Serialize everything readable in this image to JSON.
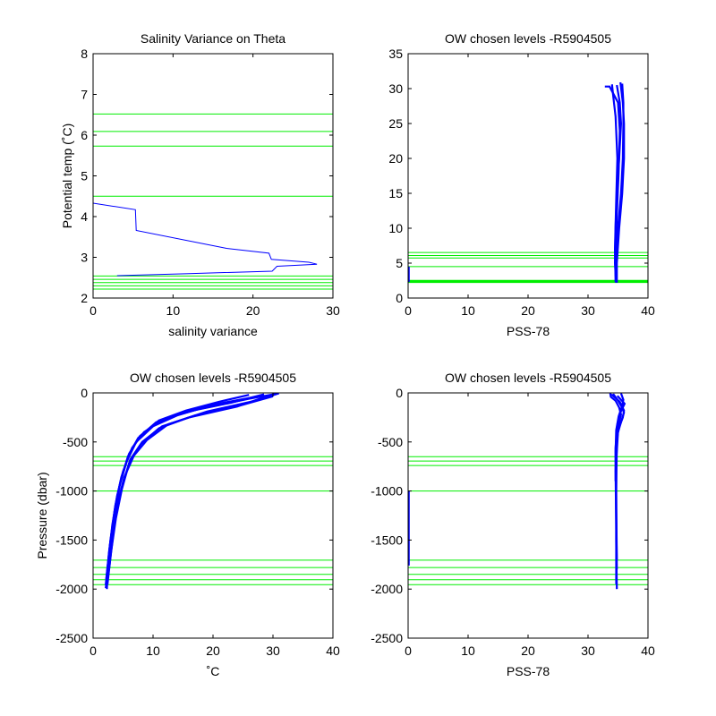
{
  "colors": {
    "data_line": "#0000ff",
    "level_line": "#00ee00",
    "axes": "#000000",
    "background": "#ffffff"
  },
  "chart_data": [
    {
      "id": "sal-var",
      "type": "line",
      "title": "Salinity Variance on Theta",
      "xlabel": "salinity variance",
      "ylabel": "Potential temp (˚C)",
      "xlim": [
        0,
        30
      ],
      "ylim": [
        2,
        8
      ],
      "xticks": [
        0,
        10,
        20,
        30
      ],
      "yticks": [
        2,
        3,
        4,
        5,
        6,
        7,
        8
      ],
      "grid": false,
      "series": [
        {
          "points": [
            [
              0,
              4.33
            ],
            [
              5.3,
              4.17
            ],
            [
              5.4,
              3.66
            ],
            [
              16.7,
              3.22
            ],
            [
              22,
              3.1
            ],
            [
              22.3,
              2.95
            ],
            [
              27,
              2.88
            ],
            [
              28,
              2.83
            ],
            [
              23,
              2.78
            ],
            [
              22.4,
              2.66
            ],
            [
              12,
              2.6
            ],
            [
              3,
              2.55
            ]
          ]
        }
      ],
      "levels": {
        "axis": "y",
        "values": [
          6.52,
          6.09,
          5.73,
          4.5,
          2.54,
          2.46,
          2.38,
          2.3,
          2.22
        ]
      }
    },
    {
      "id": "theta-sal",
      "type": "line",
      "title": "OW chosen levels -R5904505",
      "xlabel": "PSS-78",
      "ylabel": "",
      "xlim": [
        0,
        40
      ],
      "ylim": [
        0,
        35
      ],
      "xticks": [
        0,
        10,
        20,
        30,
        40
      ],
      "yticks": [
        0,
        5,
        10,
        15,
        20,
        25,
        30,
        35
      ],
      "grid": false,
      "series": [
        {
          "points": [
            [
              34.7,
              2.2
            ],
            [
              34.5,
              5
            ],
            [
              34.6,
              10
            ],
            [
              34.8,
              15
            ],
            [
              35.2,
              20
            ],
            [
              35.5,
              25
            ],
            [
              35.3,
              28
            ],
            [
              34.8,
              30.5
            ]
          ]
        },
        {
          "points": [
            [
              34.7,
              2.2
            ],
            [
              34.7,
              5
            ],
            [
              35.0,
              10
            ],
            [
              35.5,
              15
            ],
            [
              35.8,
              20
            ],
            [
              35.9,
              25
            ],
            [
              35.9,
              28
            ],
            [
              35.7,
              30.7
            ]
          ]
        },
        {
          "points": [
            [
              34.8,
              2.2
            ],
            [
              34.8,
              5
            ],
            [
              35.2,
              10
            ],
            [
              35.7,
              15
            ],
            [
              36.0,
              20
            ],
            [
              36.0,
              25
            ],
            [
              35.8,
              28
            ],
            [
              35.4,
              30.9
            ]
          ]
        },
        {
          "points": [
            [
              34.7,
              2.3
            ],
            [
              34.6,
              6
            ],
            [
              34.8,
              12
            ],
            [
              35.1,
              18
            ],
            [
              35.3,
              24
            ],
            [
              35.0,
              28
            ],
            [
              33.6,
              30.3
            ],
            [
              32.8,
              30.3
            ]
          ]
        },
        {
          "points": [
            [
              34.6,
              2.3
            ],
            [
              34.5,
              7
            ],
            [
              34.7,
              14
            ],
            [
              34.9,
              20
            ],
            [
              34.6,
              26
            ],
            [
              34.2,
              29
            ],
            [
              34.0,
              30.6
            ]
          ]
        },
        {
          "points": [
            [
              0.1,
              2.3
            ],
            [
              0.1,
              4.5
            ]
          ]
        }
      ],
      "levels": {
        "axis": "y",
        "values": [
          6.52,
          6.09,
          5.73,
          4.5,
          2.54,
          2.46,
          2.38,
          2.3,
          2.22
        ]
      }
    },
    {
      "id": "pres-temp",
      "type": "line",
      "title": "OW chosen levels -R5904505",
      "xlabel": "˚C",
      "ylabel": "Pressure (dbar)",
      "xlim": [
        0,
        40
      ],
      "ylim": [
        -2500,
        0
      ],
      "xticks": [
        0,
        10,
        20,
        30,
        40
      ],
      "yticks": [
        0,
        -500,
        -1000,
        -1500,
        -2000,
        -2500
      ],
      "grid": false,
      "series": [
        {
          "points": [
            [
              30.5,
              -10
            ],
            [
              26,
              -60
            ],
            [
              18,
              -160
            ],
            [
              12,
              -260
            ],
            [
              8.5,
              -400
            ],
            [
              6.5,
              -560
            ],
            [
              5,
              -800
            ],
            [
              4,
              -1050
            ],
            [
              3.2,
              -1350
            ],
            [
              2.6,
              -1700
            ],
            [
              2.3,
              -2000
            ]
          ]
        },
        {
          "points": [
            [
              28.5,
              -15
            ],
            [
              23,
              -100
            ],
            [
              15,
              -200
            ],
            [
              10.5,
              -300
            ],
            [
              7.5,
              -460
            ],
            [
              5.8,
              -650
            ],
            [
              4.6,
              -900
            ],
            [
              3.6,
              -1200
            ],
            [
              2.8,
              -1550
            ],
            [
              2.2,
              -1900
            ]
          ]
        },
        {
          "points": [
            [
              29.5,
              -25
            ],
            [
              24,
              -140
            ],
            [
              16,
              -250
            ],
            [
              11,
              -360
            ],
            [
              8,
              -520
            ],
            [
              6,
              -720
            ],
            [
              4.8,
              -980
            ],
            [
              3.8,
              -1280
            ],
            [
              3.0,
              -1620
            ],
            [
              2.4,
              -1950
            ]
          ]
        },
        {
          "points": [
            [
              31,
              -5
            ],
            [
              27,
              -80
            ],
            [
              19,
              -190
            ],
            [
              12.5,
              -320
            ],
            [
              9,
              -480
            ],
            [
              6.8,
              -640
            ],
            [
              5.2,
              -860
            ],
            [
              4.2,
              -1100
            ],
            [
              3.4,
              -1420
            ],
            [
              2.7,
              -1780
            ],
            [
              2.1,
              -1990
            ]
          ]
        },
        {
          "points": [
            [
              27,
              -40
            ],
            [
              20,
              -120
            ],
            [
              14,
              -230
            ],
            [
              10,
              -340
            ],
            [
              7.2,
              -500
            ],
            [
              5.6,
              -700
            ],
            [
              4.4,
              -950
            ],
            [
              3.5,
              -1250
            ],
            [
              2.7,
              -1600
            ],
            [
              2.1,
              -1960
            ]
          ]
        },
        {
          "points": [
            [
              30,
              -35
            ],
            [
              25,
              -120
            ],
            [
              17,
              -230
            ],
            [
              11.5,
              -340
            ],
            [
              8.2,
              -500
            ],
            [
              6.2,
              -680
            ],
            [
              5,
              -920
            ],
            [
              3.9,
              -1200
            ],
            [
              3.1,
              -1500
            ],
            [
              2.5,
              -1850
            ]
          ]
        },
        {
          "points": [
            [
              26,
              -20
            ],
            [
              21,
              -90
            ],
            [
              15.5,
              -180
            ],
            [
              11,
              -280
            ],
            [
              7.8,
              -440
            ],
            [
              6,
              -620
            ],
            [
              4.7,
              -860
            ],
            [
              3.7,
              -1150
            ],
            [
              2.9,
              -1500
            ],
            [
              2.3,
              -1880
            ]
          ]
        }
      ],
      "levels": {
        "axis": "y",
        "values": [
          -650,
          -695,
          -740,
          -1000,
          -1705,
          -1780,
          -1850,
          -1905,
          -1955
        ]
      }
    },
    {
      "id": "pres-sal",
      "type": "line",
      "title": "OW chosen levels -R5904505",
      "xlabel": "PSS-78",
      "ylabel": "",
      "xlim": [
        0,
        40
      ],
      "ylim": [
        -2500,
        0
      ],
      "xticks": [
        0,
        10,
        20,
        30,
        40
      ],
      "yticks": [
        0,
        -500,
        -1000,
        -1500,
        -2000,
        -2500
      ],
      "grid": false,
      "series": [
        {
          "points": [
            [
              33.7,
              -5
            ],
            [
              33.8,
              -40
            ],
            [
              34.6,
              -80
            ],
            [
              35.2,
              -150
            ],
            [
              35.5,
              -220
            ],
            [
              35.2,
              -300
            ],
            [
              34.8,
              -500
            ],
            [
              34.7,
              -1000
            ],
            [
              34.7,
              -1500
            ],
            [
              34.8,
              -2000
            ]
          ]
        },
        {
          "points": [
            [
              34.2,
              -10
            ],
            [
              34.8,
              -60
            ],
            [
              35.6,
              -140
            ],
            [
              36.0,
              -200
            ],
            [
              35.6,
              -280
            ],
            [
              35.0,
              -400
            ],
            [
              34.7,
              -700
            ],
            [
              34.7,
              -1200
            ],
            [
              34.8,
              -1800
            ]
          ]
        },
        {
          "points": [
            [
              33.9,
              -15
            ],
            [
              35.3,
              -90
            ],
            [
              36.0,
              -180
            ],
            [
              35.8,
              -250
            ],
            [
              35.3,
              -330
            ],
            [
              34.8,
              -450
            ],
            [
              34.6,
              -800
            ],
            [
              34.7,
              -1400
            ],
            [
              34.7,
              -1950
            ]
          ]
        },
        {
          "points": [
            [
              35.5,
              -5
            ],
            [
              35.9,
              -70
            ],
            [
              35.7,
              -130
            ],
            [
              35.1,
              -240
            ],
            [
              34.7,
              -380
            ],
            [
              34.6,
              -600
            ],
            [
              34.7,
              -1100
            ],
            [
              34.8,
              -1700
            ]
          ]
        },
        {
          "points": [
            [
              34.9,
              -30
            ],
            [
              36.1,
              -110
            ],
            [
              35.4,
              -200
            ],
            [
              34.9,
              -320
            ],
            [
              34.6,
              -560
            ],
            [
              34.6,
              -900
            ]
          ]
        },
        {
          "points": [
            [
              0.1,
              -1000
            ],
            [
              0.1,
              -1300
            ],
            [
              0.1,
              -1760
            ]
          ]
        }
      ],
      "levels": {
        "axis": "y",
        "values": [
          -650,
          -695,
          -740,
          -1000,
          -1705,
          -1780,
          -1850,
          -1905,
          -1955
        ]
      }
    }
  ]
}
